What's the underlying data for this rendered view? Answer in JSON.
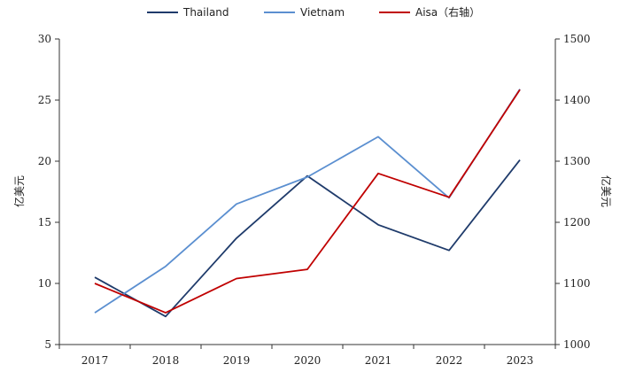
{
  "chart_data": {
    "type": "line",
    "categories": [
      "2017",
      "2018",
      "2019",
      "2020",
      "2021",
      "2022",
      "2023"
    ],
    "series": [
      {
        "name": "Thailand",
        "axis": "left",
        "color": "#1f3b6b",
        "values": [
          10.5,
          7.3,
          13.7,
          18.8,
          14.8,
          12.7,
          20.1
        ]
      },
      {
        "name": "Vietnam",
        "axis": "left",
        "color": "#5b8fd0",
        "values": [
          7.6,
          11.4,
          16.5,
          18.7,
          22.0,
          17.0,
          25.9
        ]
      },
      {
        "name": "Aisa（右轴）",
        "axis": "right",
        "color": "#c00000",
        "values": [
          1100,
          1052,
          1108,
          1123,
          1280,
          1241,
          1417
        ]
      }
    ],
    "ylabel": "亿美元",
    "y2label": "亿美元",
    "ylim": [
      5,
      30
    ],
    "y2lim": [
      1000,
      1500
    ],
    "yticks": [
      "5",
      "10",
      "15",
      "20",
      "25",
      "30"
    ],
    "y2ticks": [
      "1000",
      "1100",
      "1200",
      "1300",
      "1400",
      "1500"
    ],
    "legend": "top-center",
    "grid": false
  }
}
